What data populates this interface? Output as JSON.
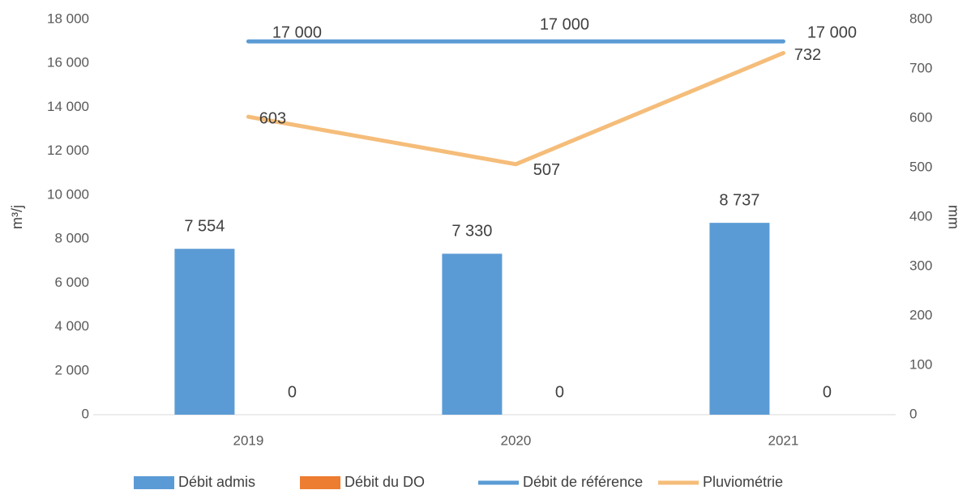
{
  "chart_data": {
    "type": "bar+line",
    "categories": [
      "2019",
      "2020",
      "2021"
    ],
    "series": [
      {
        "name": "Débit admis",
        "type": "bar",
        "color": "#5b9bd5",
        "values": [
          7554,
          7330,
          8737
        ],
        "value_labels": [
          "7 554",
          "7 330",
          "8 737"
        ]
      },
      {
        "name": "Débit du DO",
        "type": "bar",
        "color": "#ed7d31",
        "values": [
          0,
          0,
          0
        ]
      },
      {
        "name": "Débit de référence",
        "type": "line",
        "color": "#5b9bd5",
        "values": [
          17000,
          17000,
          17000
        ],
        "value_labels": [
          "17 000",
          "17 000",
          "17 000"
        ]
      },
      {
        "name": "Pluviométrie",
        "type": "line",
        "axis": "y2",
        "color": "#f5bd7a",
        "values": [
          603,
          507,
          732
        ]
      }
    ],
    "ylabel": "m³/j",
    "y2label": "mm",
    "ylim": [
      0,
      18000
    ],
    "yticks": [
      0,
      {
        "value": 2000,
        "label": "2 000"
      },
      {
        "value": 4000,
        "label": "4 000"
      },
      {
        "value": 6000,
        "label": "6 000"
      },
      {
        "value": 8000,
        "label": "8 000"
      },
      {
        "value": 10000,
        "label": "10 000"
      },
      {
        "value": 12000,
        "label": "12 000"
      },
      {
        "value": 14000,
        "label": "14 000"
      },
      {
        "value": 16000,
        "label": "16 000"
      },
      {
        "value": 18000,
        "label": "18 000"
      }
    ],
    "y2lim": [
      0,
      800
    ],
    "y2ticks": [
      0,
      100,
      200,
      300,
      400,
      500,
      600,
      700,
      800
    ],
    "legend": "bottom"
  }
}
